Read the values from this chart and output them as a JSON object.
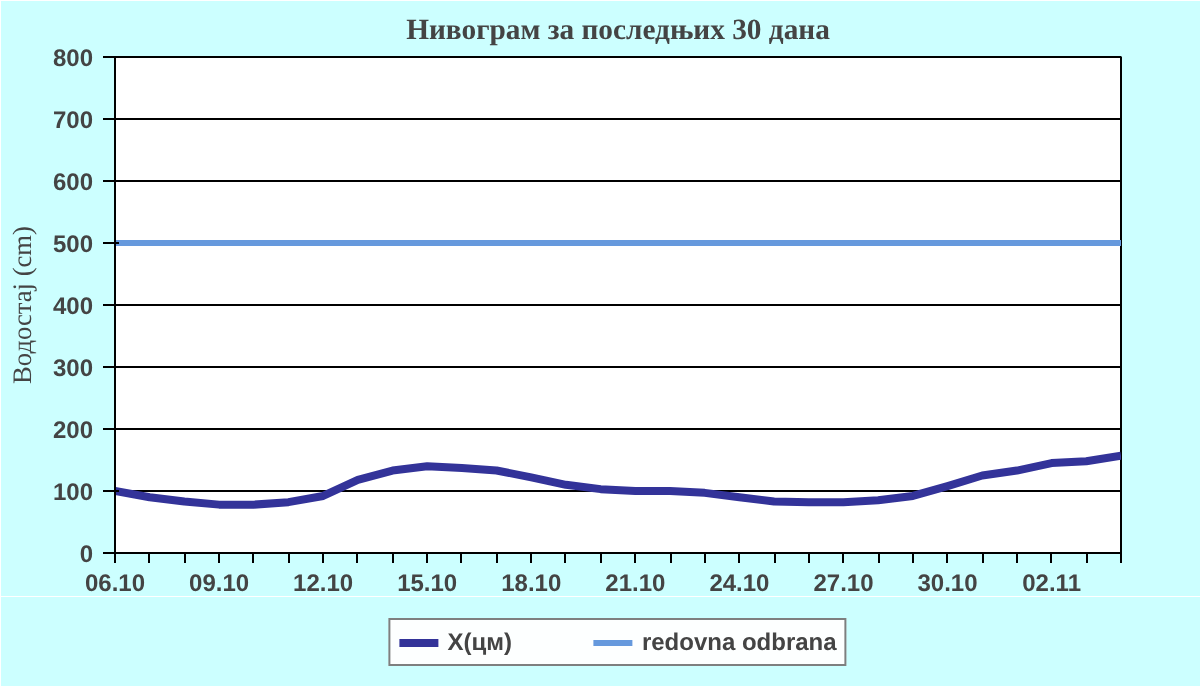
{
  "chart_data": {
    "type": "line",
    "title": "Нивограм за последњих 30 дана",
    "ylabel": "Водостај (cm)",
    "categories": [
      "06.10",
      null,
      null,
      "09.10",
      null,
      null,
      "12.10",
      null,
      null,
      "15.10",
      null,
      null,
      "18.10",
      null,
      null,
      "21.10",
      null,
      null,
      "24.10",
      null,
      null,
      "27.10",
      null,
      null,
      "30.10",
      null,
      null,
      "02.11",
      null,
      null
    ],
    "series": [
      {
        "name": "X(цм)",
        "color": "#333399",
        "values": [
          100,
          90,
          83,
          78,
          78,
          82,
          92,
          118,
          133,
          140,
          137,
          133,
          122,
          110,
          103,
          100,
          100,
          97,
          90,
          83,
          82,
          82,
          85,
          92,
          108,
          125,
          133,
          145,
          148,
          157
        ]
      },
      {
        "name": "redovna odbrana",
        "color": "#6699dd",
        "values": [
          500,
          500,
          500,
          500,
          500,
          500,
          500,
          500,
          500,
          500,
          500,
          500,
          500,
          500,
          500,
          500,
          500,
          500,
          500,
          500,
          500,
          500,
          500,
          500,
          500,
          500,
          500,
          500,
          500,
          500
        ]
      }
    ],
    "ylim": [
      0,
      800
    ],
    "yticks": [
      0,
      100,
      200,
      300,
      400,
      500,
      600,
      700,
      800
    ],
    "grid": "y",
    "legend": "bottom",
    "marker": "none",
    "line_style": "solid"
  }
}
